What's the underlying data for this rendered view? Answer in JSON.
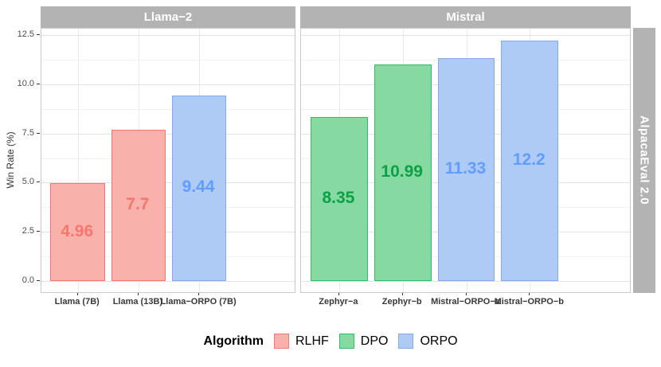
{
  "chart_data": {
    "type": "bar",
    "title": "",
    "ylabel": "Win Rate (%)",
    "xlabel": "",
    "ylim": [
      0,
      12.5
    ],
    "yticks": [
      {
        "value": 0.0,
        "label": "0.0"
      },
      {
        "value": 2.5,
        "label": "2.5"
      },
      {
        "value": 5.0,
        "label": "5.0"
      },
      {
        "value": 7.5,
        "label": "7.5"
      },
      {
        "value": 10.0,
        "label": "10.0"
      },
      {
        "value": 12.5,
        "label": "12.5"
      }
    ],
    "minor_gridlines": [
      1.25,
      3.75,
      6.25,
      8.75,
      11.25
    ],
    "grid": true,
    "right_strip": "AlpacaEval 2.0",
    "facets": [
      {
        "label": "Llama−2",
        "bars": [
          {
            "category": "Llama (7B)",
            "value": 4.96,
            "label": "4.96",
            "algorithm": "RLHF"
          },
          {
            "category": "Llama (13B)",
            "value": 7.7,
            "label": "7.7",
            "algorithm": "RLHF"
          },
          {
            "category": "Llama−ORPO (7B)",
            "value": 9.44,
            "label": "9.44",
            "algorithm": "ORPO"
          }
        ]
      },
      {
        "label": "Mistral",
        "bars": [
          {
            "category": "Zephyr−a",
            "value": 8.35,
            "label": "8.35",
            "algorithm": "DPO"
          },
          {
            "category": "Zephyr−b",
            "value": 10.99,
            "label": "10.99",
            "algorithm": "DPO"
          },
          {
            "category": "Mistral−ORPO−a",
            "value": 11.33,
            "label": "11.33",
            "algorithm": "ORPO"
          },
          {
            "category": "Mistral−ORPO−b",
            "value": 12.2,
            "label": "12.2",
            "algorithm": "ORPO"
          }
        ]
      }
    ],
    "legend": {
      "title": "Algorithm",
      "position": "bottom",
      "entries": [
        {
          "label": "RLHF",
          "algorithm": "RLHF"
        },
        {
          "label": "DPO",
          "algorithm": "DPO"
        },
        {
          "label": "ORPO",
          "algorithm": "ORPO"
        }
      ]
    },
    "colors": {
      "RLHF": {
        "fill": "#F9B1AB",
        "stroke": "#F8766D",
        "text": "#F8766D"
      },
      "DPO": {
        "fill": "#86D9A0",
        "stroke": "#30BD64",
        "text": "#0BA147"
      },
      "ORPO": {
        "fill": "#AECBF5",
        "stroke": "#82ABEF",
        "text": "#619CFF"
      }
    },
    "strip_bg": "#B3B3B3",
    "strip_text_color": "#FFFFFF"
  }
}
